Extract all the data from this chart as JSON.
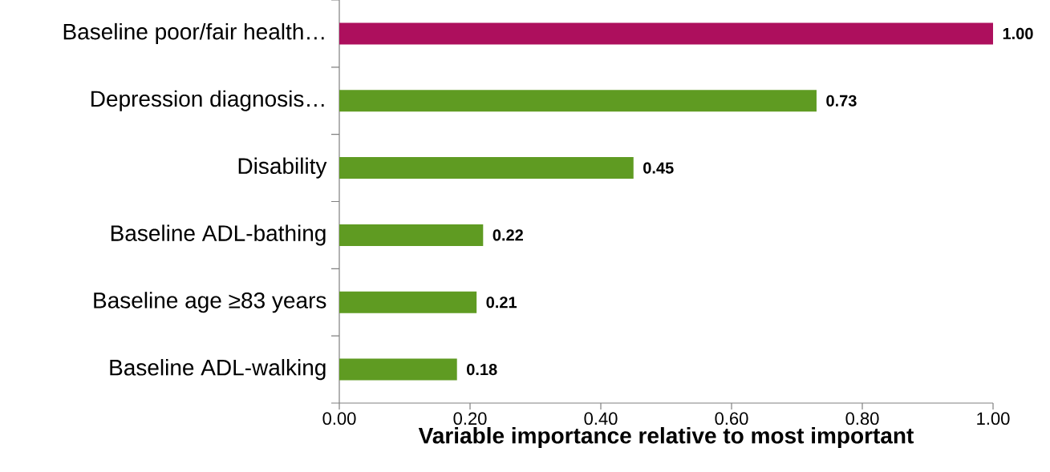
{
  "chart_data": {
    "type": "bar",
    "orientation": "horizontal",
    "categories": [
      "Baseline poor/fair health…",
      "Depression diagnosis…",
      "Disability",
      "Baseline ADL-bathing",
      "Baseline age ≥83 years",
      "Baseline ADL-walking"
    ],
    "values": [
      1.0,
      0.73,
      0.45,
      0.22,
      0.21,
      0.18
    ],
    "value_labels": [
      "1.00",
      "0.73",
      "0.45",
      "0.22",
      "0.21",
      "0.18"
    ],
    "colors": [
      "#ad0f5d",
      "#5f9b22",
      "#5f9b22",
      "#5f9b22",
      "#5f9b22",
      "#5f9b22"
    ],
    "xlabel": "Variable importance relative to most important",
    "xlim": [
      0,
      1
    ],
    "xticks": [
      {
        "value": 0,
        "label": "0.00"
      },
      {
        "value": 0.2,
        "label": "0.20"
      },
      {
        "value": 0.4,
        "label": "0.40"
      },
      {
        "value": 0.6,
        "label": "0.60"
      },
      {
        "value": 0.8,
        "label": "0.80"
      },
      {
        "value": 1,
        "label": "1.00"
      }
    ],
    "grid": false
  }
}
